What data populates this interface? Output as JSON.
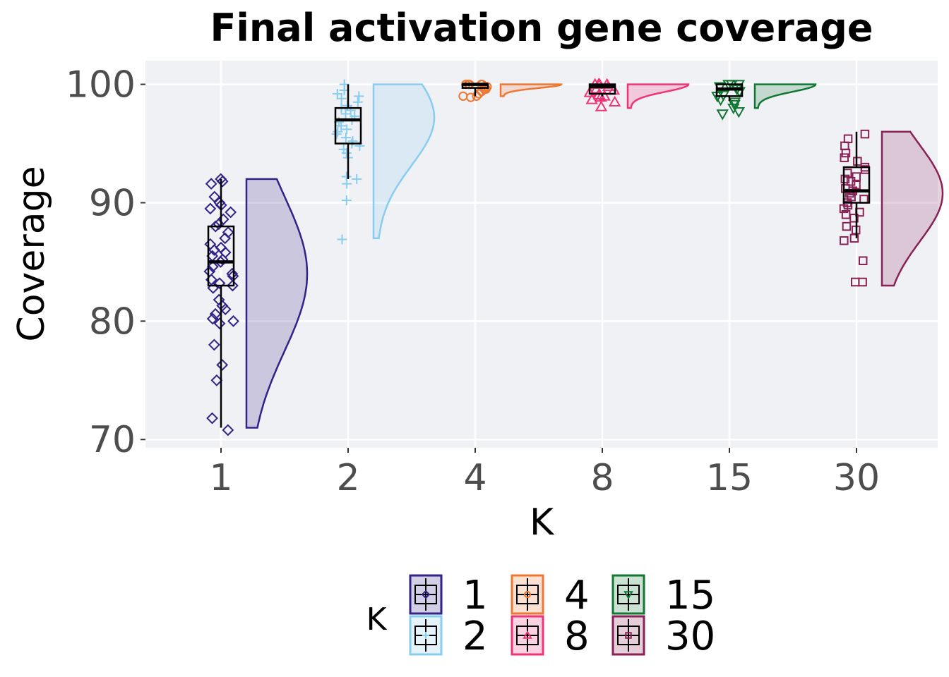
{
  "chart_data": {
    "type": "raincloud",
    "title": "Final activation gene coverage",
    "xlabel": "K",
    "ylabel": "Coverage",
    "ylim": [
      69.3,
      102.0
    ],
    "y_ticks": [
      70,
      80,
      90,
      100
    ],
    "categories": [
      "1",
      "2",
      "4",
      "8",
      "15",
      "30"
    ],
    "grid": true,
    "legend": {
      "title": "K",
      "position": "bottom",
      "labels": [
        "1",
        "2",
        "4",
        "8",
        "15",
        "30"
      ]
    },
    "series": [
      {
        "name": "1",
        "color": "#332288",
        "marker": "diamond",
        "box": {
          "min": 71,
          "q1": 83,
          "median": 85,
          "q3": 88,
          "max": 92
        },
        "density_range": [
          71,
          92
        ],
        "density_peak": 84,
        "points": [
          92,
          91.8,
          91.6,
          90.5,
          90,
          89.8,
          89.5,
          89.2,
          88.6,
          88.2,
          88,
          87.5,
          87,
          86.5,
          86.2,
          86,
          85.8,
          85.5,
          85.2,
          85,
          84.6,
          84.2,
          84,
          83.8,
          83.5,
          83.2,
          83,
          82.8,
          81.8,
          81.3,
          81,
          80.6,
          80.2,
          80,
          79.8,
          78,
          76.3,
          75,
          71.8,
          70.8
        ]
      },
      {
        "name": "2",
        "color": "#88CCEE",
        "marker": "plus",
        "box": {
          "min": 92,
          "q1": 95,
          "median": 97,
          "q3": 98,
          "max": 100
        },
        "density_range": [
          87,
          100
        ],
        "density_peak": 97.2,
        "points": [
          100,
          99.5,
          99.2,
          99,
          98.8,
          98.5,
          98.2,
          98,
          97.8,
          97.5,
          97.3,
          97,
          96.8,
          96.5,
          96.2,
          96,
          95.8,
          95.5,
          95.2,
          95,
          94.8,
          94.5,
          94.2,
          93.8,
          92.2,
          92,
          91.6,
          90.2,
          86.9
        ]
      },
      {
        "name": "4",
        "color": "#EE7733",
        "marker": "circle",
        "box": {
          "min": 99,
          "q1": 99.7,
          "median": 100,
          "q3": 100,
          "max": 100
        },
        "density_range": [
          99,
          100
        ],
        "density_peak": 100,
        "points": [
          100,
          100,
          100,
          100,
          100,
          99.8,
          99.8,
          99.6,
          99.6,
          99.4,
          99.2,
          99,
          99,
          98.9
        ]
      },
      {
        "name": "8",
        "color": "#EE3377",
        "marker": "triangle",
        "box": {
          "min": 99,
          "q1": 99.2,
          "median": 99.8,
          "q3": 100,
          "max": 100
        },
        "density_range": [
          98,
          100
        ],
        "density_peak": 100,
        "points": [
          100,
          100,
          100,
          100,
          99.8,
          99.6,
          99.5,
          99.3,
          99.1,
          99,
          98.9,
          98.7,
          98.5,
          98.1
        ]
      },
      {
        "name": "15",
        "color": "#117733",
        "marker": "triangle-down",
        "box": {
          "min": 98.6,
          "q1": 99,
          "median": 99.6,
          "q3": 100,
          "max": 100
        },
        "density_range": [
          98,
          100
        ],
        "density_peak": 100,
        "points": [
          100,
          100,
          100,
          99.8,
          99.6,
          99.4,
          99.1,
          99,
          98.7,
          98.5,
          98.3,
          98,
          97.7,
          97.5
        ]
      },
      {
        "name": "30",
        "color": "#882255",
        "marker": "square",
        "box": {
          "min": 87,
          "q1": 90,
          "median": 91,
          "q3": 93,
          "max": 96
        },
        "density_range": [
          83,
          96
        ],
        "density_peak": 90.8,
        "points": [
          95.8,
          95.4,
          94.8,
          94.2,
          93.8,
          93.5,
          93,
          92.8,
          92.5,
          92.2,
          92,
          91.8,
          91.5,
          91.2,
          91,
          90.8,
          90.5,
          90.3,
          90,
          89.8,
          89.5,
          89.2,
          89,
          88.7,
          88,
          87.7,
          87,
          86.8,
          85.1,
          83.3,
          83.3
        ]
      }
    ]
  }
}
